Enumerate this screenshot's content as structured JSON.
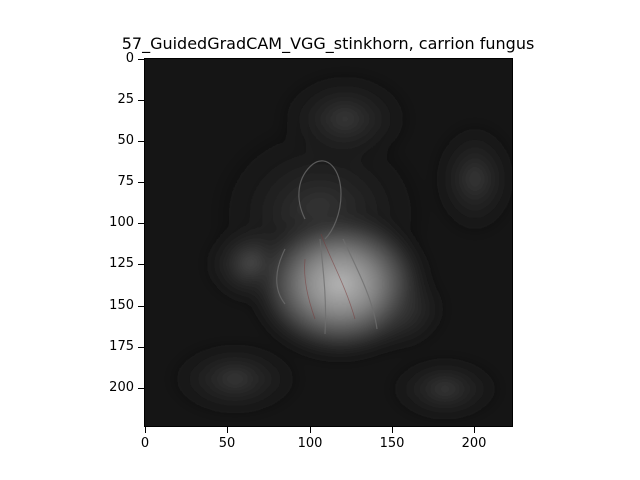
{
  "title": "57_GuidedGradCAM_VGG_stinkhorn, carrion fungus",
  "axes": {
    "x_ticks": [
      "0",
      "50",
      "100",
      "150",
      "200"
    ],
    "y_ticks": [
      "0",
      "25",
      "50",
      "75",
      "100",
      "125",
      "150",
      "175",
      "200"
    ],
    "x_range": [
      0,
      224
    ],
    "y_range": [
      0,
      224
    ]
  },
  "image": {
    "description": "grayscale heatmap: bright blob centered near x=115, y=140 with faint fungus outline"
  }
}
